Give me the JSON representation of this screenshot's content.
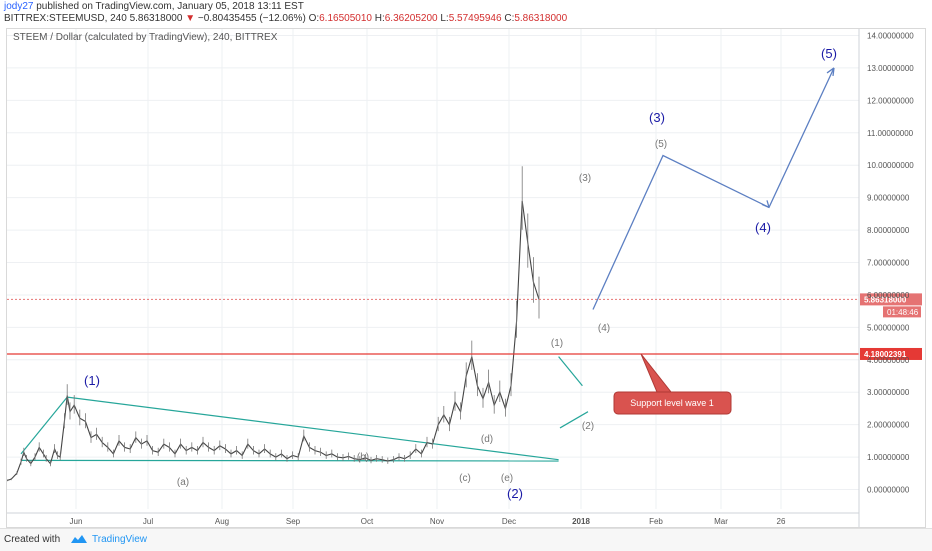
{
  "header": {
    "author": "jody27",
    "published_text": "published on TradingView.com, January 05, 2018 13:11 EST",
    "symbol": "BITTREX:STEEMUSD, 240",
    "last": "5.86318000",
    "change_arrow": "▼",
    "change": "−0.80435455 (−12.06%)",
    "open_label": "O:",
    "open": "6.16505010",
    "high_label": "H:",
    "high": "6.36205200",
    "low_label": "L:",
    "low": "5.57495946",
    "close_label": "C:",
    "close": "5.86318000"
  },
  "chart_data": {
    "type": "line",
    "title": "STEEM / Dollar (calculated by TradingView), 240, BITTREX",
    "x_tick_labels": [
      "Jun",
      "Jul",
      "Aug",
      "Sep",
      "Oct",
      "Nov",
      "Dec",
      "2018",
      "Feb",
      "Mar",
      "26"
    ],
    "y_ticks": [
      "14.00000000",
      "13.00000000",
      "12.00000000",
      "11.00000000",
      "10.00000000",
      "9.00000000",
      "8.00000000",
      "7.00000000",
      "6.00000000",
      "5.00000000",
      "4.00000000",
      "3.00000000",
      "2.00000000",
      "1.00000000",
      "0.00000000"
    ],
    "ylim": [
      -0.6,
      14.2
    ],
    "price_series": [
      {
        "t": 0.0,
        "v": 0.28
      },
      {
        "t": 0.03,
        "v": 0.32
      },
      {
        "t": 0.07,
        "v": 0.5
      },
      {
        "t": 0.1,
        "v": 0.85
      },
      {
        "t": 0.12,
        "v": 1.15
      },
      {
        "t": 0.14,
        "v": 0.95
      },
      {
        "t": 0.17,
        "v": 0.8
      },
      {
        "t": 0.2,
        "v": 1.0
      },
      {
        "t": 0.23,
        "v": 1.3
      },
      {
        "t": 0.26,
        "v": 1.1
      },
      {
        "t": 0.28,
        "v": 0.95
      },
      {
        "t": 0.31,
        "v": 0.8
      },
      {
        "t": 0.34,
        "v": 1.25
      },
      {
        "t": 0.36,
        "v": 1.05
      },
      {
        "t": 0.38,
        "v": 1.0
      },
      {
        "t": 0.41,
        "v": 2.1
      },
      {
        "t": 0.43,
        "v": 2.9
      },
      {
        "t": 0.45,
        "v": 2.4
      },
      {
        "t": 0.48,
        "v": 2.6
      },
      {
        "t": 0.52,
        "v": 2.2
      },
      {
        "t": 0.56,
        "v": 2.1
      },
      {
        "t": 0.6,
        "v": 1.6
      },
      {
        "t": 0.64,
        "v": 1.7
      },
      {
        "t": 0.68,
        "v": 1.45
      },
      {
        "t": 0.72,
        "v": 1.3
      },
      {
        "t": 0.76,
        "v": 1.1
      },
      {
        "t": 0.8,
        "v": 1.5
      },
      {
        "t": 0.84,
        "v": 1.3
      },
      {
        "t": 0.88,
        "v": 1.25
      },
      {
        "t": 0.92,
        "v": 1.6
      },
      {
        "t": 0.96,
        "v": 1.4
      },
      {
        "t": 1.0,
        "v": 1.5
      },
      {
        "t": 1.04,
        "v": 1.2
      },
      {
        "t": 1.08,
        "v": 1.15
      },
      {
        "t": 1.12,
        "v": 1.4
      },
      {
        "t": 1.16,
        "v": 1.3
      },
      {
        "t": 1.2,
        "v": 1.1
      },
      {
        "t": 1.24,
        "v": 1.4
      },
      {
        "t": 1.28,
        "v": 1.2
      },
      {
        "t": 1.32,
        "v": 1.3
      },
      {
        "t": 1.36,
        "v": 1.2
      },
      {
        "t": 1.4,
        "v": 1.45
      },
      {
        "t": 1.44,
        "v": 1.3
      },
      {
        "t": 1.48,
        "v": 1.2
      },
      {
        "t": 1.52,
        "v": 1.35
      },
      {
        "t": 1.56,
        "v": 1.25
      },
      {
        "t": 1.6,
        "v": 1.1
      },
      {
        "t": 1.64,
        "v": 1.2
      },
      {
        "t": 1.68,
        "v": 1.05
      },
      {
        "t": 1.72,
        "v": 1.4
      },
      {
        "t": 1.76,
        "v": 1.2
      },
      {
        "t": 1.8,
        "v": 1.1
      },
      {
        "t": 1.84,
        "v": 1.25
      },
      {
        "t": 1.88,
        "v": 1.1
      },
      {
        "t": 1.92,
        "v": 1.0
      },
      {
        "t": 1.96,
        "v": 1.1
      },
      {
        "t": 2.0,
        "v": 0.95
      },
      {
        "t": 2.04,
        "v": 1.05
      },
      {
        "t": 2.08,
        "v": 1.0
      },
      {
        "t": 2.12,
        "v": 1.65
      },
      {
        "t": 2.16,
        "v": 1.3
      },
      {
        "t": 2.2,
        "v": 1.2
      },
      {
        "t": 2.24,
        "v": 1.15
      },
      {
        "t": 2.28,
        "v": 1.05
      },
      {
        "t": 2.32,
        "v": 1.1
      },
      {
        "t": 2.36,
        "v": 1.0
      },
      {
        "t": 2.4,
        "v": 0.98
      },
      {
        "t": 2.44,
        "v": 1.02
      },
      {
        "t": 2.48,
        "v": 0.95
      },
      {
        "t": 2.52,
        "v": 0.92
      },
      {
        "t": 2.56,
        "v": 0.98
      },
      {
        "t": 2.6,
        "v": 0.9
      },
      {
        "t": 2.64,
        "v": 0.95
      },
      {
        "t": 2.68,
        "v": 0.92
      },
      {
        "t": 2.72,
        "v": 0.88
      },
      {
        "t": 2.76,
        "v": 0.92
      },
      {
        "t": 2.8,
        "v": 1.0
      },
      {
        "t": 2.84,
        "v": 0.95
      },
      {
        "t": 2.88,
        "v": 1.05
      },
      {
        "t": 2.92,
        "v": 1.25
      },
      {
        "t": 2.96,
        "v": 1.1
      },
      {
        "t": 3.0,
        "v": 1.45
      },
      {
        "t": 3.04,
        "v": 1.4
      },
      {
        "t": 3.08,
        "v": 2.0
      },
      {
        "t": 3.12,
        "v": 2.3
      },
      {
        "t": 3.16,
        "v": 2.0
      },
      {
        "t": 3.2,
        "v": 2.7
      },
      {
        "t": 3.24,
        "v": 2.4
      },
      {
        "t": 3.28,
        "v": 3.5
      },
      {
        "t": 3.32,
        "v": 4.1
      },
      {
        "t": 3.36,
        "v": 3.2
      },
      {
        "t": 3.4,
        "v": 2.8
      },
      {
        "t": 3.44,
        "v": 3.3
      },
      {
        "t": 3.48,
        "v": 2.6
      },
      {
        "t": 3.52,
        "v": 3.0
      },
      {
        "t": 3.56,
        "v": 2.5
      },
      {
        "t": 3.6,
        "v": 3.2
      },
      {
        "t": 3.64,
        "v": 5.2
      },
      {
        "t": 3.68,
        "v": 8.9
      },
      {
        "t": 3.72,
        "v": 7.6
      },
      {
        "t": 3.76,
        "v": 6.4
      },
      {
        "t": 3.8,
        "v": 5.86
      }
    ],
    "horizontal_lines": [
      {
        "value": 4.18002391,
        "label": "4.18002391",
        "color": "#e53935",
        "style": "solid"
      },
      {
        "value": 5.86318,
        "label": "5.86318000",
        "sublabel": "01:48:46",
        "color": "#e57373",
        "style": "dotted"
      }
    ],
    "wave_labels": [
      {
        "text": "(1)",
        "color": "#1a1aa6",
        "size": "large"
      },
      {
        "text": "(a)",
        "color": "#777777",
        "size": "small"
      },
      {
        "text": "(b)",
        "color": "#777777",
        "size": "small"
      },
      {
        "text": "(c)",
        "color": "#777777",
        "size": "small"
      },
      {
        "text": "(d)",
        "color": "#777777",
        "size": "small"
      },
      {
        "text": "(e)",
        "color": "#777777",
        "size": "small"
      },
      {
        "text": "(2)",
        "color": "#1a1aa6",
        "size": "large"
      },
      {
        "text": "(1)",
        "color": "#777777",
        "size": "small"
      },
      {
        "text": "(2)",
        "color": "#777777",
        "size": "small"
      },
      {
        "text": "(3)",
        "color": "#777777",
        "size": "small"
      },
      {
        "text": "(4)",
        "color": "#777777",
        "size": "small"
      },
      {
        "text": "(5)",
        "color": "#777777",
        "size": "small"
      },
      {
        "text": "(3)",
        "color": "#1a1aa6",
        "size": "large"
      },
      {
        "text": "(4)",
        "color": "#1a1aa6",
        "size": "large"
      },
      {
        "text": "(5)",
        "color": "#1a1aa6",
        "size": "large"
      }
    ],
    "projection_path_values": [
      5.55,
      10.3,
      8.7,
      13.0
    ],
    "callout": {
      "text": "Support level wave 1",
      "color": "#d9534f"
    },
    "colors": {
      "price": "#444444",
      "trendlines": "#26a69a",
      "projection": "#5c7fc2",
      "grid": "#eef0f3"
    }
  },
  "footer": {
    "created_with": "Created with",
    "brand": "TradingView",
    "logo_icon": "tradingview-logo-icon"
  }
}
